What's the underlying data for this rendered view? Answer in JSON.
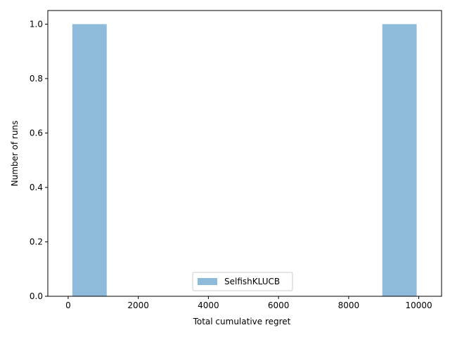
{
  "chart_data": {
    "type": "bar",
    "subtype": "histogram",
    "xlabel": "Total cumulative regret",
    "ylabel": "Number of runs",
    "xlim": [
      -580,
      10650
    ],
    "ylim": [
      0,
      1.05
    ],
    "xticks": [
      0,
      2000,
      4000,
      6000,
      8000,
      10000
    ],
    "yticks": [
      0.0,
      0.2,
      0.4,
      0.6,
      0.8,
      1.0
    ],
    "xtick_labels": [
      "0",
      "2000",
      "4000",
      "6000",
      "8000",
      "10000"
    ],
    "ytick_labels": [
      "0.0",
      "0.2",
      "0.4",
      "0.6",
      "0.8",
      "1.0"
    ],
    "grid": false,
    "legend_position": "lower-center",
    "series": [
      {
        "name": "SelfishKLUCB",
        "color": "#8fbbdb",
        "bins": [
          {
            "x0": 120,
            "x1": 1100,
            "count": 1
          },
          {
            "x0": 8960,
            "x1": 9940,
            "count": 1
          }
        ]
      }
    ]
  }
}
